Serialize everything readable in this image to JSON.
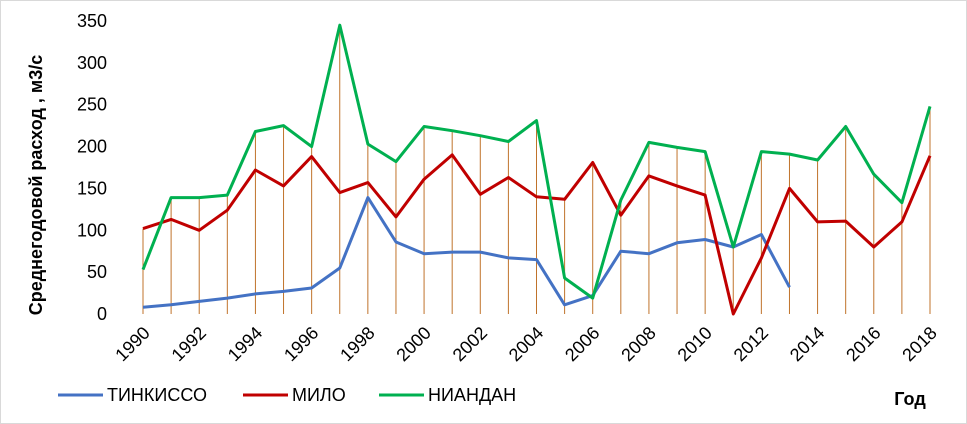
{
  "chart_data": {
    "type": "line",
    "xlabel": "Год",
    "ylabel": "Среднегодовой расход , м3/с",
    "ylim": [
      0,
      350
    ],
    "yticks": [
      0,
      50,
      100,
      150,
      200,
      250,
      300,
      350
    ],
    "x": [
      1990,
      1991,
      1992,
      1993,
      1994,
      1995,
      1996,
      1997,
      1998,
      1999,
      2000,
      2001,
      2002,
      2003,
      2004,
      2005,
      2006,
      2007,
      2008,
      2009,
      2010,
      2011,
      2012,
      2013,
      2014,
      2015,
      2016,
      2017,
      2018
    ],
    "xtick_labels": [
      "1990",
      "1992",
      "1994",
      "1996",
      "1998",
      "2000",
      "2002",
      "2004",
      "2006",
      "2008",
      "2010",
      "2012",
      "2014",
      "2016",
      "2018"
    ],
    "drop_lines": true,
    "legend_position": "bottom",
    "series": [
      {
        "name": "ТИНКИССО",
        "color": "#4472c4",
        "values": [
          8,
          11,
          15,
          19,
          24,
          27,
          31,
          55,
          139,
          86,
          72,
          74,
          74,
          67,
          65,
          11,
          22,
          75,
          72,
          85,
          89,
          80,
          95,
          32,
          null,
          null,
          null,
          null,
          null
        ]
      },
      {
        "name": "МИЛО",
        "color": "#c00000",
        "values": [
          102,
          113,
          100,
          124,
          172,
          153,
          188,
          145,
          157,
          116,
          161,
          190,
          143,
          163,
          140,
          137,
          181,
          118,
          165,
          153,
          142,
          0,
          67,
          150,
          110,
          111,
          80,
          110,
          189
        ]
      },
      {
        "name": "НИАНДАН",
        "color": "#00b050",
        "values": [
          53,
          139,
          139,
          142,
          218,
          225,
          200,
          345,
          203,
          182,
          224,
          219,
          213,
          206,
          231,
          43,
          19,
          136,
          205,
          199,
          194,
          80,
          194,
          191,
          184,
          224,
          167,
          133,
          248
        ]
      }
    ]
  }
}
